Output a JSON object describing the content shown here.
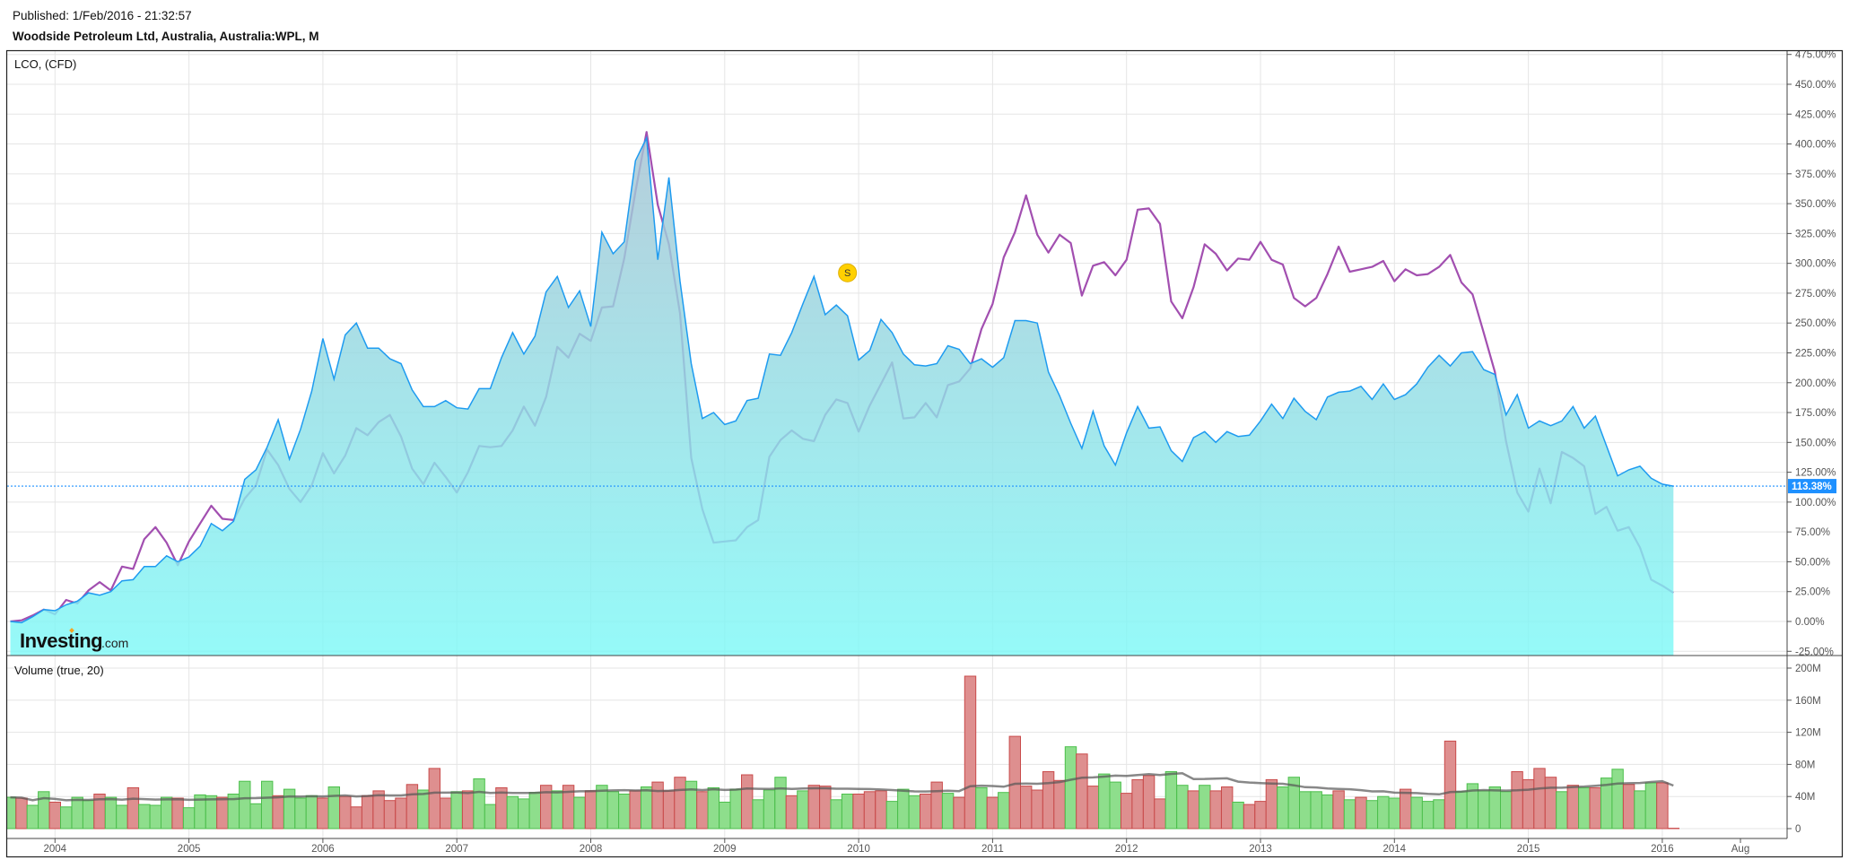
{
  "header": {
    "published": "Published: 1/Feb/2016 - 21:32:57",
    "title": "Woodside Petroleum Ltd, Australia, Australia:WPL, M"
  },
  "logo": {
    "name": "Investing",
    "suffix": ".com"
  },
  "chart_data": {
    "type": "area+line+bar",
    "x_range": [
      "2003-09",
      "2016-02"
    ],
    "interval": "M",
    "x_ticks": [
      "2004",
      "2005",
      "2006",
      "2007",
      "2008",
      "2009",
      "2010",
      "2011",
      "2012",
      "2013",
      "2014",
      "2015",
      "2016",
      "Aug"
    ],
    "grid": true,
    "price_panel": {
      "comparison_label": "LCO,  (CFD)",
      "y_unit": "%",
      "ylim": [
        -25,
        475
      ],
      "y_ticks": [
        "475.00%",
        "450.00%",
        "425.00%",
        "400.00%",
        "375.00%",
        "350.00%",
        "325.00%",
        "300.00%",
        "275.00%",
        "250.00%",
        "225.00%",
        "200.00%",
        "175.00%",
        "150.00%",
        "125.00%",
        "100.00%",
        "75.00%",
        "50.00%",
        "25.00%",
        "0.00%",
        "-25.00%"
      ],
      "last_value_label": "113.38%",
      "last_value": 113.38,
      "series": [
        {
          "type": "area",
          "color": "#1e9bf0",
          "values": [
            0,
            -1,
            4,
            10,
            9,
            14,
            17,
            24,
            22,
            25,
            34,
            35,
            46,
            46,
            55,
            50,
            54,
            63,
            82,
            76,
            84,
            119,
            127,
            146,
            169,
            136,
            161,
            193,
            237,
            203,
            240,
            250,
            229,
            229,
            220,
            216,
            194,
            180,
            180,
            185,
            179,
            178,
            195,
            195,
            221,
            242,
            224,
            239,
            276,
            289,
            263,
            277,
            247,
            326,
            308,
            318,
            386,
            405,
            303,
            372,
            285,
            216,
            170,
            175,
            165,
            168,
            185,
            187,
            224,
            223,
            242,
            266,
            289,
            257,
            265,
            256,
            219,
            227,
            253,
            242,
            224,
            215,
            214,
            216,
            231,
            228,
            216,
            220,
            213,
            221,
            252,
            252,
            250,
            209,
            189,
            166,
            145,
            176,
            147,
            131,
            158,
            180,
            162,
            163,
            143,
            134,
            154,
            159,
            150,
            159,
            155,
            156,
            168,
            182,
            170,
            187,
            176,
            169,
            188,
            192,
            193,
            197,
            186,
            199,
            186,
            190,
            199,
            213,
            223,
            214,
            225,
            226,
            211,
            207,
            173,
            190,
            162,
            168,
            164,
            168,
            180,
            162,
            172,
            147,
            122,
            127,
            130,
            120,
            115,
            113.38
          ]
        },
        {
          "name": "LCO",
          "type": "line",
          "color": "#a24fb0",
          "values": [
            0,
            1,
            5,
            10,
            6,
            18,
            15,
            26,
            33,
            26,
            46,
            44,
            69,
            79,
            66,
            47,
            67,
            82,
            97,
            86,
            85,
            103,
            114,
            144,
            131,
            111,
            100,
            114,
            141,
            124,
            139,
            162,
            156,
            167,
            173,
            155,
            128,
            115,
            133,
            121,
            108,
            125,
            147,
            146,
            147,
            160,
            180,
            164,
            188,
            230,
            221,
            241,
            235,
            263,
            264,
            304,
            360,
            410,
            349,
            316,
            258,
            137,
            94,
            66,
            67,
            68,
            79,
            85,
            138,
            152,
            160,
            153,
            151,
            173,
            186,
            183,
            159,
            181,
            199,
            217,
            170,
            171,
            183,
            171,
            198,
            201,
            212,
            245,
            266,
            305,
            326,
            357,
            324,
            309,
            324,
            317,
            273,
            298,
            301,
            290,
            303,
            345,
            346,
            333,
            268,
            254,
            280,
            316,
            308,
            294,
            304,
            303,
            318,
            303,
            299,
            271,
            264,
            271,
            291,
            314,
            293,
            295,
            297,
            302,
            285,
            295,
            290,
            291,
            297,
            307,
            284,
            274,
            242,
            209,
            151,
            108,
            92,
            128,
            99,
            142,
            137,
            130,
            90,
            96,
            76,
            79,
            62,
            35,
            30,
            24
          ]
        }
      ],
      "events": [
        {
          "label": "S",
          "date": "2009-12",
          "color": "#ffd000"
        }
      ]
    },
    "volume_panel": {
      "label": "Volume (true, 20)",
      "y_unit": "M",
      "ylim": [
        0,
        200
      ],
      "y_ticks": [
        "200M",
        "160M",
        "120M",
        "80M",
        "40M",
        "0"
      ],
      "ma_period": 20,
      "up_color": "#8ede8c",
      "down_color": "#de8f8f",
      "values": [
        39,
        38,
        29,
        46,
        33,
        27,
        39,
        35,
        43,
        39,
        29,
        51,
        30,
        29,
        39,
        38,
        26,
        42,
        41,
        39,
        43,
        59,
        31,
        59,
        41,
        49,
        38,
        41,
        38,
        52,
        40,
        27,
        41,
        47,
        35,
        38,
        55,
        48,
        75,
        38,
        46,
        47,
        62,
        30,
        51,
        40,
        37,
        45,
        54,
        47,
        54,
        39,
        47,
        54,
        46,
        43,
        47,
        52,
        58,
        47,
        64,
        59,
        46,
        51,
        33,
        49,
        67,
        36,
        48,
        64,
        41,
        47,
        54,
        53,
        36,
        43,
        43,
        46,
        47,
        34,
        49,
        41,
        43,
        58,
        44,
        39,
        190,
        51,
        39,
        45,
        115,
        53,
        48,
        71,
        60,
        102,
        93,
        53,
        68,
        58,
        44,
        61,
        66,
        37,
        71,
        54,
        47,
        54,
        47,
        52,
        33,
        30,
        34,
        61,
        52,
        64,
        46,
        46,
        42,
        47,
        36,
        39,
        35,
        40,
        38,
        49,
        39,
        34,
        36,
        109,
        46,
        56,
        47,
        52,
        46,
        71,
        61,
        75,
        64,
        46,
        54,
        51,
        51,
        63,
        74,
        55,
        47,
        57,
        57,
        0.5
      ],
      "direction": "gdggdgggdggdgggdgggdggggdgggdgdddddddgddgdggdgggdgdgdg ggdgdddgdgggdgggdgddggdddgggdd gddgdgdddddgddggddddggdgddgdddgggggdgdgggdgggdgggggdddd gdgdggdggddggdd"
    }
  }
}
